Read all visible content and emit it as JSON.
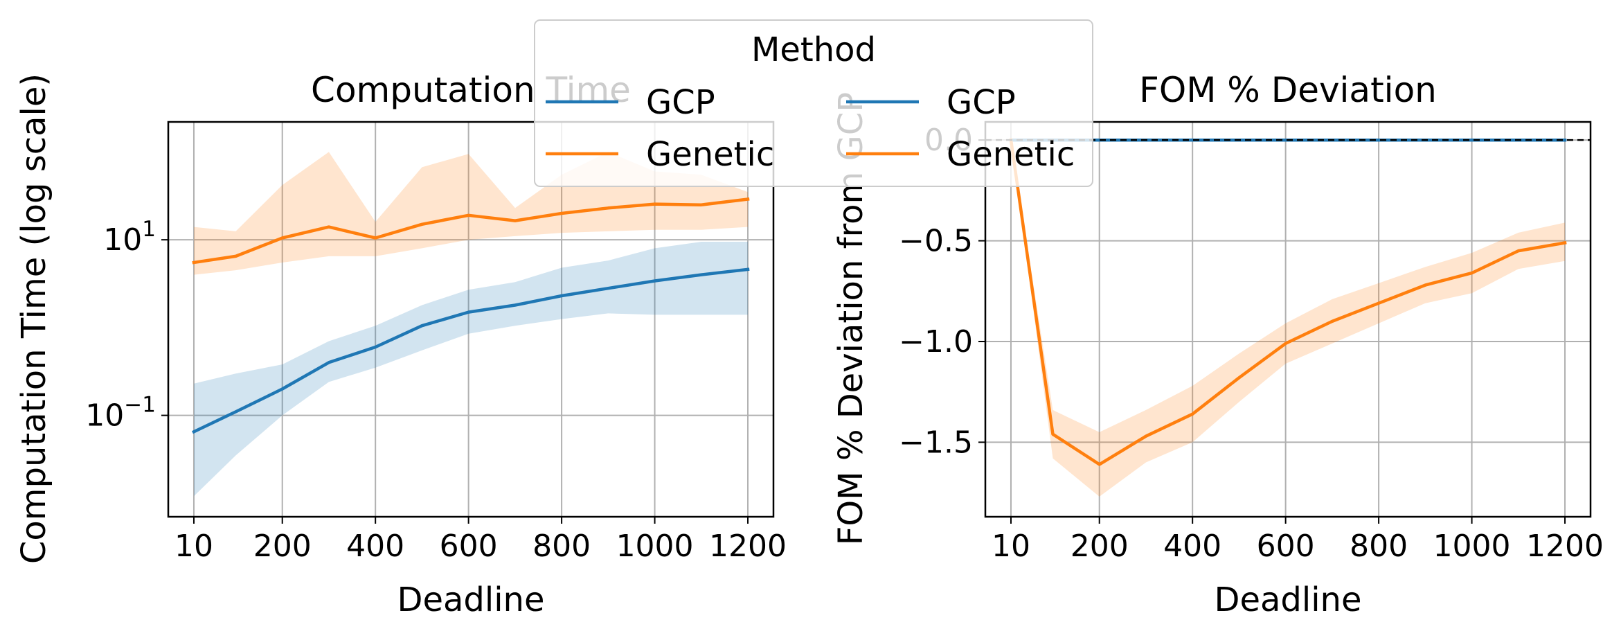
{
  "legend": {
    "title": "Method",
    "entries": [
      {
        "name": "GCP",
        "color": "#1f77b4"
      },
      {
        "name": "Genetic",
        "color": "#ff7f0e"
      },
      {
        "name": "GCP",
        "color": "#1f77b4"
      },
      {
        "name": "Genetic",
        "color": "#ff7f0e"
      }
    ],
    "placement": "top-center"
  },
  "chart_data": [
    {
      "type": "line",
      "title": "Computation Time",
      "xlabel": "Deadline",
      "ylabel": "Computation Time (log scale)",
      "yscale": "log",
      "grid": true,
      "x_ticks": [
        "10",
        "200",
        "400",
        "600",
        "800",
        "1000",
        "1200"
      ],
      "y_ticks": [
        {
          "value": 0.1,
          "base": "10",
          "exp": "−1"
        },
        {
          "value": 10,
          "base": "10",
          "exp": "1"
        }
      ],
      "xlim": [
        -45,
        1255
      ],
      "ylim": [
        0.007,
        220
      ],
      "x": [
        10,
        100,
        200,
        300,
        400,
        500,
        600,
        700,
        800,
        900,
        1000,
        1100,
        1200
      ],
      "series": [
        {
          "name": "GCP",
          "color": "#1f77b4",
          "values": [
            0.065,
            0.11,
            0.2,
            0.4,
            0.6,
            1.05,
            1.5,
            1.8,
            2.3,
            2.8,
            3.4,
            4.0,
            4.6
          ],
          "band_low": [
            0.012,
            0.035,
            0.1,
            0.24,
            0.35,
            0.55,
            0.85,
            1.05,
            1.25,
            1.45,
            1.4,
            1.4,
            1.4
          ],
          "band_high": [
            0.23,
            0.3,
            0.38,
            0.7,
            1.05,
            1.8,
            2.7,
            3.3,
            4.8,
            5.8,
            8.0,
            9.5,
            9.5
          ]
        },
        {
          "name": "Genetic",
          "color": "#ff7f0e",
          "values": [
            5.5,
            6.5,
            10.5,
            14.0,
            10.5,
            15.0,
            19.0,
            16.5,
            20.0,
            23.0,
            25.5,
            25.0,
            29.0
          ],
          "band_low": [
            4.0,
            4.5,
            5.5,
            6.5,
            6.5,
            8.0,
            10.0,
            11.0,
            12.0,
            12.5,
            13.0,
            13.0,
            14.0
          ],
          "band_high": [
            14.0,
            12.5,
            42.0,
            100.0,
            16.0,
            67.0,
            95.0,
            23.0,
            55.0,
            100.0,
            60.0,
            55.0,
            35.0
          ]
        }
      ]
    },
    {
      "type": "line",
      "title": "FOM % Deviation",
      "xlabel": "Deadline",
      "ylabel": "FOM % Deviation from GCP",
      "grid": true,
      "x_ticks": [
        "10",
        "200",
        "400",
        "600",
        "800",
        "1000",
        "1200"
      ],
      "y_ticks": [
        "0.0",
        "−0.5",
        "−1.0",
        "−1.5"
      ],
      "xlim": [
        -45,
        1255
      ],
      "ylim": [
        -1.87,
        0.09
      ],
      "reference_line": {
        "y": 0.0,
        "style": "dashed",
        "color": "#000000"
      },
      "x": [
        10,
        100,
        200,
        300,
        400,
        500,
        600,
        700,
        800,
        900,
        1000,
        1100,
        1200
      ],
      "series": [
        {
          "name": "GCP",
          "color": "#1f77b4",
          "values": [
            0,
            0,
            0,
            0,
            0,
            0,
            0,
            0,
            0,
            0,
            0,
            0,
            0
          ]
        },
        {
          "name": "Genetic",
          "color": "#ff7f0e",
          "values": [
            0.0,
            -1.46,
            -1.61,
            -1.47,
            -1.36,
            -1.18,
            -1.01,
            -0.9,
            -0.81,
            -0.72,
            -0.66,
            -0.55,
            -0.51
          ],
          "band_low": [
            0.0,
            -1.58,
            -1.77,
            -1.6,
            -1.5,
            -1.3,
            -1.11,
            -1.01,
            -0.91,
            -0.81,
            -0.76,
            -0.64,
            -0.6
          ],
          "band_high": [
            0.0,
            -1.34,
            -1.45,
            -1.34,
            -1.22,
            -1.06,
            -0.91,
            -0.79,
            -0.71,
            -0.63,
            -0.56,
            -0.46,
            -0.41
          ]
        }
      ]
    }
  ]
}
